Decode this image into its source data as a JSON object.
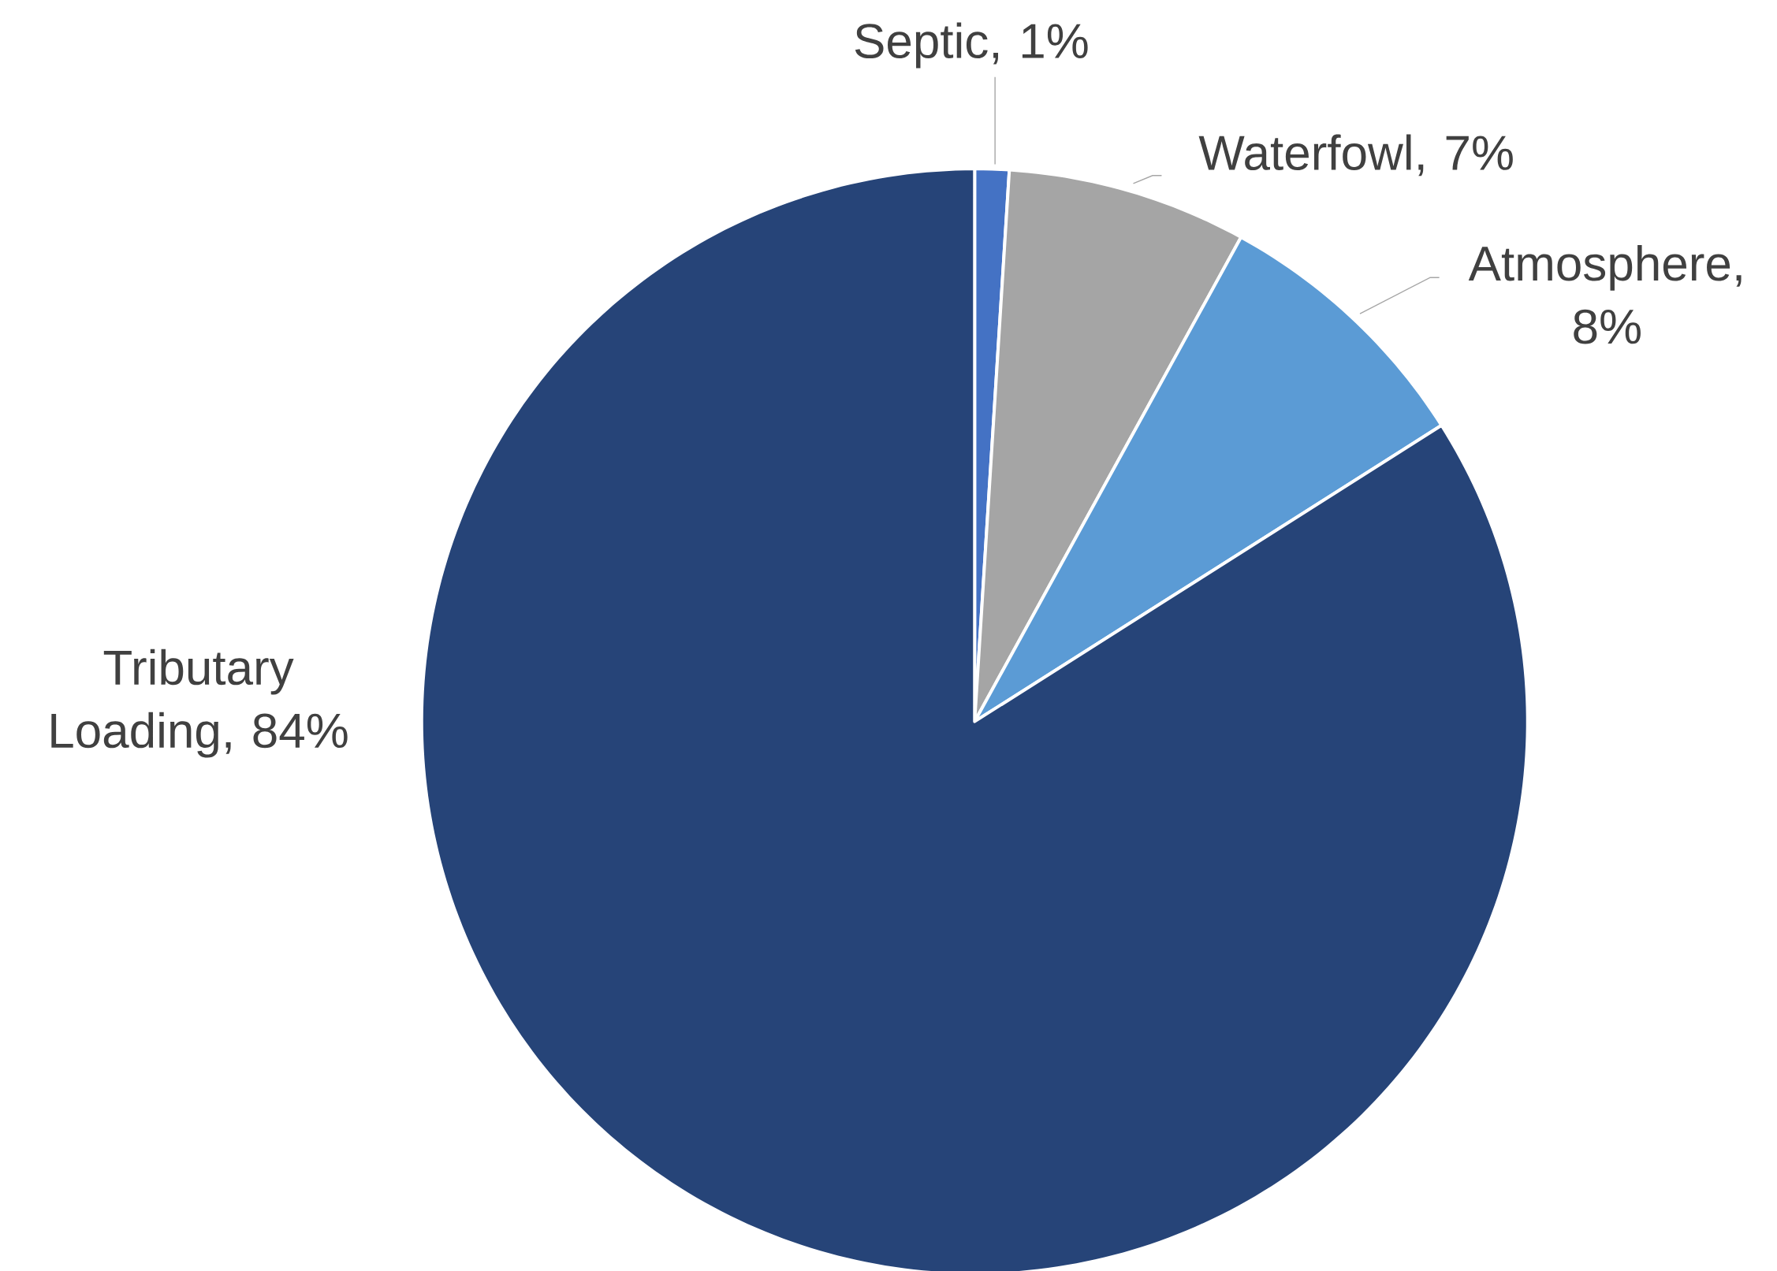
{
  "chart_data": {
    "type": "pie",
    "categories": [
      "Septic",
      "Waterfowl",
      "Atmosphere",
      "Tributary Loading"
    ],
    "values": [
      1,
      7,
      8,
      84
    ],
    "value_labels": [
      ", 1%",
      ", 7%",
      ", 8%",
      ", 84%"
    ],
    "colors": [
      "#4472c4",
      "#a5a5a5",
      "#5b9bd5",
      "#264478"
    ]
  }
}
